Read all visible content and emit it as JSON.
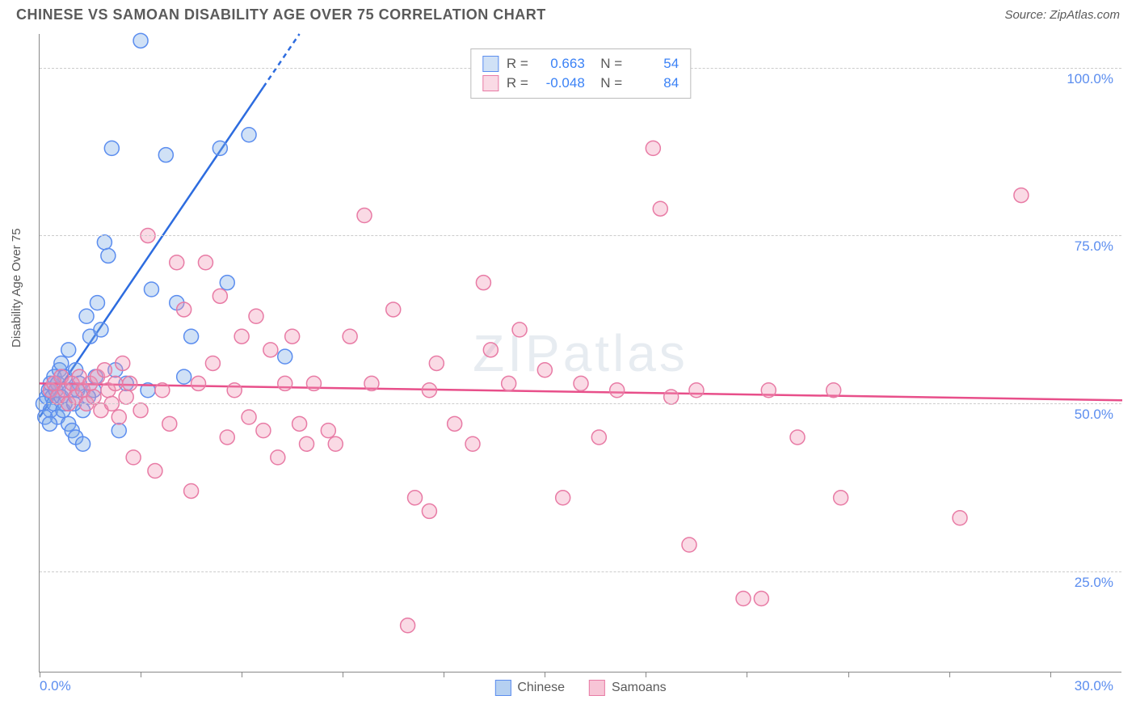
{
  "header": {
    "title": "CHINESE VS SAMOAN DISABILITY AGE OVER 75 CORRELATION CHART",
    "source": "Source: ZipAtlas.com"
  },
  "chart": {
    "type": "scatter",
    "ylabel": "Disability Age Over 75",
    "watermark": "ZIPatlas",
    "background_color": "#ffffff",
    "grid_color": "#cccccc",
    "axis_color": "#888888",
    "xlim": [
      0,
      30
    ],
    "ylim": [
      10,
      105
    ],
    "x_ticks": [
      0,
      2.8,
      5.6,
      8.4,
      11.2,
      14,
      16.8,
      19.6,
      22.4,
      25.2,
      28
    ],
    "x_tick_labels_shown": {
      "left": "0.0%",
      "right": "30.0%"
    },
    "y_gridlines": [
      25,
      50,
      75,
      100
    ],
    "y_tick_labels": [
      "25.0%",
      "50.0%",
      "75.0%",
      "100.0%"
    ],
    "y_tick_color": "#5b8def",
    "x_label_color": "#5b8def",
    "marker_radius": 9,
    "marker_stroke_width": 1.5,
    "series": [
      {
        "name": "Chinese",
        "fill": "rgba(120,170,230,0.35)",
        "stroke": "#5b8def",
        "R": "0.663",
        "N": "54",
        "trend": {
          "x1": 0,
          "y1": 48,
          "x2": 7.2,
          "y2": 105,
          "dash_after_x": 6.2,
          "color": "#2d6cdf",
          "width": 2.5
        },
        "points": [
          [
            0.1,
            50
          ],
          [
            0.2,
            51
          ],
          [
            0.25,
            52
          ],
          [
            0.3,
            49
          ],
          [
            0.3,
            53
          ],
          [
            0.35,
            51
          ],
          [
            0.4,
            50
          ],
          [
            0.4,
            54
          ],
          [
            0.45,
            52
          ],
          [
            0.5,
            48
          ],
          [
            0.5,
            53
          ],
          [
            0.55,
            55
          ],
          [
            0.6,
            51
          ],
          [
            0.6,
            56
          ],
          [
            0.7,
            50
          ],
          [
            0.7,
            54
          ],
          [
            0.8,
            47
          ],
          [
            0.8,
            58
          ],
          [
            0.9,
            52
          ],
          [
            0.9,
            46
          ],
          [
            1.0,
            55
          ],
          [
            1.0,
            45
          ],
          [
            1.1,
            53
          ],
          [
            1.2,
            49
          ],
          [
            1.2,
            44
          ],
          [
            1.3,
            63
          ],
          [
            1.4,
            60
          ],
          [
            1.5,
            52
          ],
          [
            1.6,
            65
          ],
          [
            1.7,
            61
          ],
          [
            1.8,
            74
          ],
          [
            1.9,
            72
          ],
          [
            2.0,
            88
          ],
          [
            2.1,
            55
          ],
          [
            2.4,
            53
          ],
          [
            2.8,
            104
          ],
          [
            3.0,
            52
          ],
          [
            3.1,
            67
          ],
          [
            3.5,
            87
          ],
          [
            3.8,
            65
          ],
          [
            4.0,
            54
          ],
          [
            4.2,
            60
          ],
          [
            5.0,
            88
          ],
          [
            5.2,
            68
          ],
          [
            5.8,
            90
          ],
          [
            6.8,
            57
          ],
          [
            2.2,
            46
          ],
          [
            0.15,
            48
          ],
          [
            0.28,
            47
          ],
          [
            0.65,
            49
          ],
          [
            0.95,
            50
          ],
          [
            1.05,
            52
          ],
          [
            1.35,
            51
          ],
          [
            1.55,
            54
          ]
        ]
      },
      {
        "name": "Samoans",
        "fill": "rgba(240,150,180,0.35)",
        "stroke": "#e87ba5",
        "R": "-0.048",
        "N": "84",
        "trend": {
          "x1": 0,
          "y1": 53,
          "x2": 30,
          "y2": 50.5,
          "color": "#e84f8a",
          "width": 2.5
        },
        "points": [
          [
            0.3,
            52
          ],
          [
            0.4,
            53
          ],
          [
            0.5,
            51
          ],
          [
            0.6,
            54
          ],
          [
            0.7,
            52
          ],
          [
            0.8,
            50
          ],
          [
            0.9,
            53
          ],
          [
            1.0,
            51
          ],
          [
            1.1,
            54
          ],
          [
            1.2,
            52
          ],
          [
            1.3,
            50
          ],
          [
            1.4,
            53
          ],
          [
            1.5,
            51
          ],
          [
            1.6,
            54
          ],
          [
            1.7,
            49
          ],
          [
            1.8,
            55
          ],
          [
            1.9,
            52
          ],
          [
            2.0,
            50
          ],
          [
            2.1,
            53
          ],
          [
            2.2,
            48
          ],
          [
            2.3,
            56
          ],
          [
            2.4,
            51
          ],
          [
            2.5,
            53
          ],
          [
            2.6,
            42
          ],
          [
            2.8,
            49
          ],
          [
            3.0,
            75
          ],
          [
            3.2,
            40
          ],
          [
            3.4,
            52
          ],
          [
            3.6,
            47
          ],
          [
            3.8,
            71
          ],
          [
            4.0,
            64
          ],
          [
            4.2,
            37
          ],
          [
            4.4,
            53
          ],
          [
            4.6,
            71
          ],
          [
            4.8,
            56
          ],
          [
            5.0,
            66
          ],
          [
            5.2,
            45
          ],
          [
            5.4,
            52
          ],
          [
            5.6,
            60
          ],
          [
            5.8,
            48
          ],
          [
            6.0,
            63
          ],
          [
            6.2,
            46
          ],
          [
            6.4,
            58
          ],
          [
            6.6,
            42
          ],
          [
            6.8,
            53
          ],
          [
            7.0,
            60
          ],
          [
            7.2,
            47
          ],
          [
            7.4,
            44
          ],
          [
            7.6,
            53
          ],
          [
            8.0,
            46
          ],
          [
            8.2,
            44
          ],
          [
            8.6,
            60
          ],
          [
            9.0,
            78
          ],
          [
            9.2,
            53
          ],
          [
            9.8,
            64
          ],
          [
            10.2,
            17
          ],
          [
            10.4,
            36
          ],
          [
            10.8,
            52
          ],
          [
            10.8,
            34
          ],
          [
            11.0,
            56
          ],
          [
            11.5,
            47
          ],
          [
            12.0,
            44
          ],
          [
            12.3,
            68
          ],
          [
            12.5,
            58
          ],
          [
            13.0,
            53
          ],
          [
            13.3,
            61
          ],
          [
            14.0,
            55
          ],
          [
            15.0,
            53
          ],
          [
            15.5,
            45
          ],
          [
            16.0,
            52
          ],
          [
            17.0,
            88
          ],
          [
            17.2,
            79
          ],
          [
            17.5,
            51
          ],
          [
            18.0,
            29
          ],
          [
            18.2,
            52
          ],
          [
            19.5,
            21
          ],
          [
            20.0,
            21
          ],
          [
            20.2,
            52
          ],
          [
            21.0,
            45
          ],
          [
            22.0,
            52
          ],
          [
            22.2,
            36
          ],
          [
            25.5,
            33
          ],
          [
            27.2,
            81
          ],
          [
            14.5,
            36
          ]
        ]
      }
    ],
    "bottom_legend": [
      {
        "label": "Chinese",
        "fill": "rgba(120,170,230,0.55)",
        "stroke": "#5b8def"
      },
      {
        "label": "Samoans",
        "fill": "rgba(240,150,180,0.55)",
        "stroke": "#e87ba5"
      }
    ]
  }
}
